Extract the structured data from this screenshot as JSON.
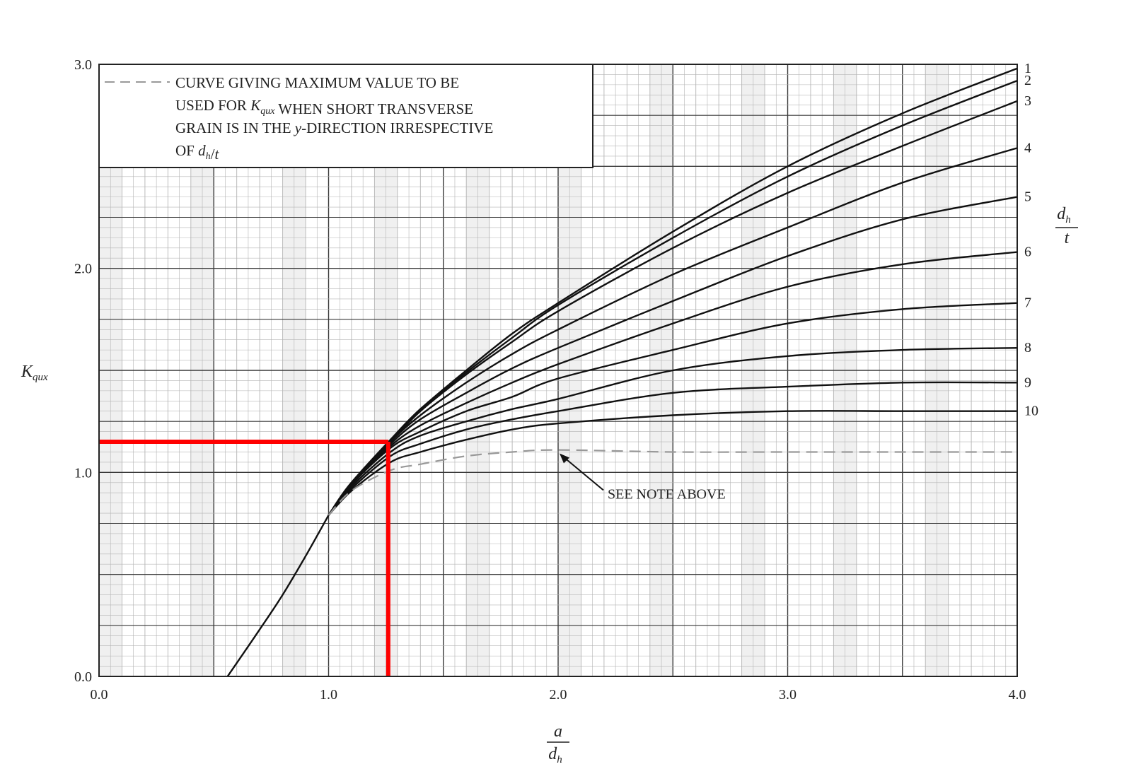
{
  "chart_data": {
    "type": "line",
    "xlabel": {
      "num": "a",
      "den_main": "d",
      "den_sub": "h"
    },
    "ylabel": {
      "main": "K",
      "sub": "qux"
    },
    "right_label": {
      "num_main": "d",
      "num_sub": "h",
      "den": "t"
    },
    "xlim": [
      0,
      4
    ],
    "ylim": [
      0,
      3
    ],
    "x_ticks": [
      0,
      1,
      2,
      3,
      4
    ],
    "x_tick_labels": [
      "0.0",
      "1.0",
      "2.0",
      "3.0",
      "4.0"
    ],
    "y_ticks": [
      0,
      1,
      2,
      3
    ],
    "y_tick_labels": [
      "0.0",
      "1.0",
      "2.0",
      "3.0"
    ],
    "grid": true,
    "legend": {
      "placement": "top-left",
      "lines": [
        "CURVE GIVING MAXIMUM VALUE TO BE",
        "USED FOR K_qux WHEN SHORT TRANSVERSE",
        "GRAIN IS IN THE y-DIRECTION IRRESPECTIVE",
        "OF d_h/t"
      ],
      "rich_lines": [
        [
          {
            "t": "CURVE GIVING MAXIMUM VALUE TO BE"
          }
        ],
        [
          {
            "t": "USED FOR "
          },
          {
            "t": "K",
            "i": true
          },
          {
            "t": "qux",
            "i": true,
            "sub": true
          },
          {
            "t": " WHEN SHORT TRANSVERSE"
          }
        ],
        [
          {
            "t": "GRAIN IS IN THE "
          },
          {
            "t": "y",
            "i": true
          },
          {
            "t": "-DIRECTION IRRESPECTIVE"
          }
        ],
        [
          {
            "t": "OF "
          },
          {
            "t": "d",
            "i": true
          },
          {
            "t": "h",
            "i": true,
            "sub": true
          },
          {
            "t": "/"
          },
          {
            "t": "t",
            "i": true
          }
        ]
      ]
    },
    "annotation": {
      "text": "SEE NOTE ABOVE",
      "points_to": [
        2.0,
        1.1
      ]
    },
    "base_curve": {
      "x": [
        0.56,
        0.7,
        0.8,
        0.9,
        1.0
      ],
      "y": [
        0.0,
        0.23,
        0.4,
        0.59,
        0.79
      ]
    },
    "series": [
      {
        "name": "1",
        "x": [
          1.0,
          1.1,
          1.27,
          1.4,
          1.6,
          1.8,
          2.0,
          2.5,
          3.0,
          3.5,
          4.0
        ],
        "y": [
          0.79,
          0.95,
          1.16,
          1.31,
          1.5,
          1.68,
          1.83,
          2.18,
          2.5,
          2.76,
          2.98
        ]
      },
      {
        "name": "2",
        "x": [
          1.0,
          1.1,
          1.27,
          1.4,
          1.6,
          1.8,
          2.0,
          2.5,
          3.0,
          3.5,
          4.0
        ],
        "y": [
          0.79,
          0.95,
          1.16,
          1.31,
          1.49,
          1.66,
          1.82,
          2.15,
          2.45,
          2.7,
          2.92
        ]
      },
      {
        "name": "3",
        "x": [
          1.0,
          1.1,
          1.27,
          1.4,
          1.6,
          1.8,
          2.0,
          2.5,
          3.0,
          3.5,
          4.0
        ],
        "y": [
          0.79,
          0.95,
          1.15,
          1.3,
          1.48,
          1.64,
          1.79,
          2.1,
          2.37,
          2.6,
          2.82
        ]
      },
      {
        "name": "4",
        "x": [
          1.0,
          1.1,
          1.27,
          1.4,
          1.6,
          1.8,
          2.0,
          2.5,
          3.0,
          3.5,
          4.0
        ],
        "y": [
          0.79,
          0.95,
          1.15,
          1.28,
          1.44,
          1.58,
          1.7,
          1.97,
          2.2,
          2.42,
          2.59
        ]
      },
      {
        "name": "5",
        "x": [
          1.0,
          1.1,
          1.27,
          1.4,
          1.6,
          1.8,
          2.0,
          2.5,
          3.0,
          3.5,
          4.0
        ],
        "y": [
          0.79,
          0.95,
          1.14,
          1.26,
          1.39,
          1.51,
          1.61,
          1.84,
          2.06,
          2.24,
          2.35
        ]
      },
      {
        "name": "6",
        "x": [
          1.0,
          1.1,
          1.27,
          1.4,
          1.6,
          1.8,
          2.0,
          2.5,
          3.0,
          3.5,
          4.0
        ],
        "y": [
          0.79,
          0.95,
          1.13,
          1.23,
          1.34,
          1.44,
          1.53,
          1.73,
          1.91,
          2.02,
          2.08
        ]
      },
      {
        "name": "7",
        "x": [
          1.0,
          1.1,
          1.27,
          1.4,
          1.6,
          1.8,
          2.0,
          2.5,
          3.0,
          3.5,
          4.0
        ],
        "y": [
          0.79,
          0.94,
          1.12,
          1.2,
          1.3,
          1.37,
          1.46,
          1.6,
          1.73,
          1.8,
          1.83
        ]
      },
      {
        "name": "8",
        "x": [
          1.0,
          1.1,
          1.27,
          1.4,
          1.6,
          1.8,
          2.0,
          2.5,
          3.0,
          3.5,
          4.0
        ],
        "y": [
          0.79,
          0.93,
          1.1,
          1.18,
          1.25,
          1.31,
          1.36,
          1.5,
          1.57,
          1.6,
          1.61
        ]
      },
      {
        "name": "9",
        "x": [
          1.0,
          1.1,
          1.27,
          1.4,
          1.6,
          1.8,
          2.0,
          2.5,
          3.0,
          3.5,
          4.0
        ],
        "y": [
          0.79,
          0.92,
          1.08,
          1.14,
          1.21,
          1.26,
          1.3,
          1.39,
          1.42,
          1.44,
          1.44
        ]
      },
      {
        "name": "10",
        "x": [
          1.0,
          1.1,
          1.27,
          1.4,
          1.6,
          1.8,
          2.0,
          2.5,
          3.0,
          3.5,
          4.0
        ],
        "y": [
          0.79,
          0.91,
          1.05,
          1.1,
          1.16,
          1.21,
          1.24,
          1.28,
          1.3,
          1.3,
          1.3
        ]
      },
      {
        "name": "max (dashed)",
        "style": "dashed",
        "x": [
          1.0,
          1.1,
          1.27,
          1.4,
          1.6,
          1.8,
          2.0,
          2.5,
          3.0,
          3.5,
          4.0
        ],
        "y": [
          0.79,
          0.91,
          1.01,
          1.04,
          1.08,
          1.1,
          1.11,
          1.1,
          1.1,
          1.1,
          1.1
        ]
      }
    ],
    "highlight": {
      "color": "#ff0000",
      "x": 1.26,
      "y": 1.15
    },
    "colors": {
      "curve": "#111111",
      "dashed": "#999999",
      "grid_minor": "#b4b4b4",
      "grid_major": "#3a3a3a",
      "highlight": "#ff0000",
      "shade": "#f0f0f0"
    }
  }
}
